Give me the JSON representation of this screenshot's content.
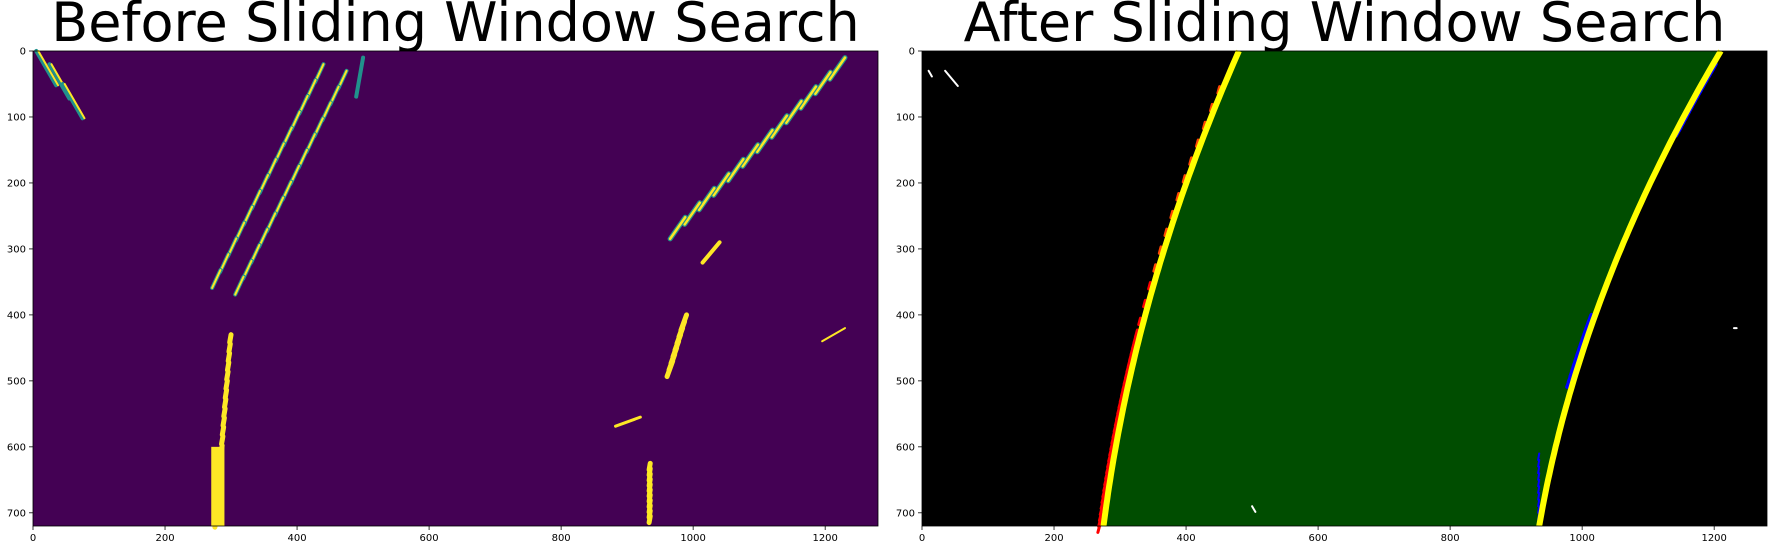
{
  "panels": [
    {
      "title": "Before Sliding Window Search",
      "background": "#440154",
      "highlight": "#fde725",
      "mid": "#21918c"
    },
    {
      "title": "After Sliding Window Search",
      "background": "#000000",
      "lane_fill": "#004d00",
      "left_pixels": "#ff0000",
      "left_pixels_alt": "#ff4500",
      "right_pixels": "#0000ff",
      "fit_line": "#ffff00",
      "noise": "#ffffff"
    }
  ],
  "axes": {
    "x_ticks": [
      "0",
      "200",
      "400",
      "600",
      "800",
      "1000",
      "1200"
    ],
    "y_ticks": [
      "0",
      "100",
      "200",
      "300",
      "400",
      "500",
      "600",
      "700"
    ],
    "x_range": [
      0,
      1280
    ],
    "y_range": [
      720,
      0
    ]
  },
  "fit": {
    "left_x_at_bottom": 275,
    "left_x_at_top": 480,
    "right_x_at_bottom": 935,
    "right_x_at_top": 1210
  }
}
